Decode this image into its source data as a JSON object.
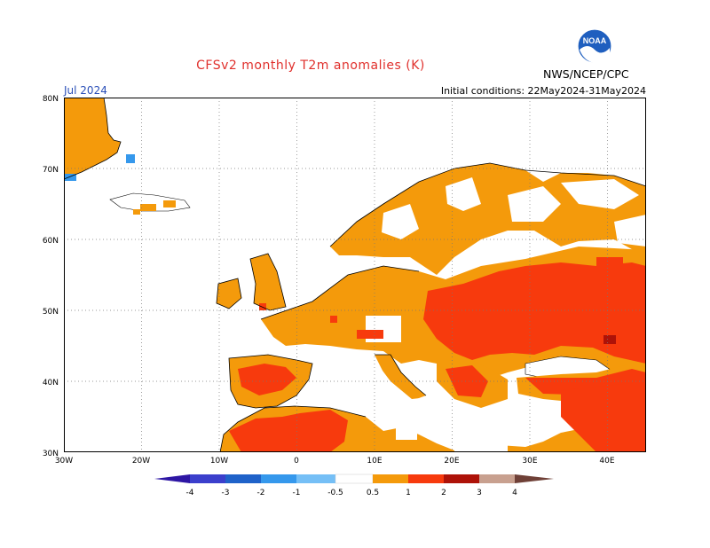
{
  "title": "CFSv2 monthly T2m anomalies (K)",
  "valid_month": "Jul 2024",
  "initial_conditions": "Initial conditions: 22May2024-31May2024",
  "agency": "NWS/NCEP/CPC",
  "logo_text": "NOAA",
  "map": {
    "projection": "lat-lon",
    "lon_range": [
      -30,
      45
    ],
    "lat_range": [
      30,
      80
    ],
    "lon_ticks": [
      "30W",
      "20W",
      "10W",
      "0",
      "10E",
      "20E",
      "30E",
      "40E"
    ],
    "lat_ticks": [
      "80N",
      "70N",
      "60N",
      "50N",
      "40N",
      "30N"
    ],
    "grid": "dotted",
    "dominant_anomaly": "0.5 to 2 K warm over most of Europe; 2-3 K in the Pontic steppe"
  },
  "colorbar": {
    "tick_labels": [
      "-4",
      "-3",
      "-2",
      "-1",
      "-0.5",
      "0.5",
      "1",
      "2",
      "3",
      "4"
    ],
    "colors": [
      "#2d16a4",
      "#3b3fcc",
      "#1f62c9",
      "#3598ec",
      "#75bff6",
      "#ffffff",
      "#f49a0b",
      "#f73a0d",
      "#ae1208",
      "#c8a08f",
      "#6f4037"
    ]
  },
  "colors": {
    "weak_warm": "#f49a0b",
    "warm": "#f73a0d",
    "strong_warm": "#ae1208",
    "weak_cold": "#3598ec",
    "title_red": "#e0302c",
    "month_blue": "#2a4fb8"
  }
}
